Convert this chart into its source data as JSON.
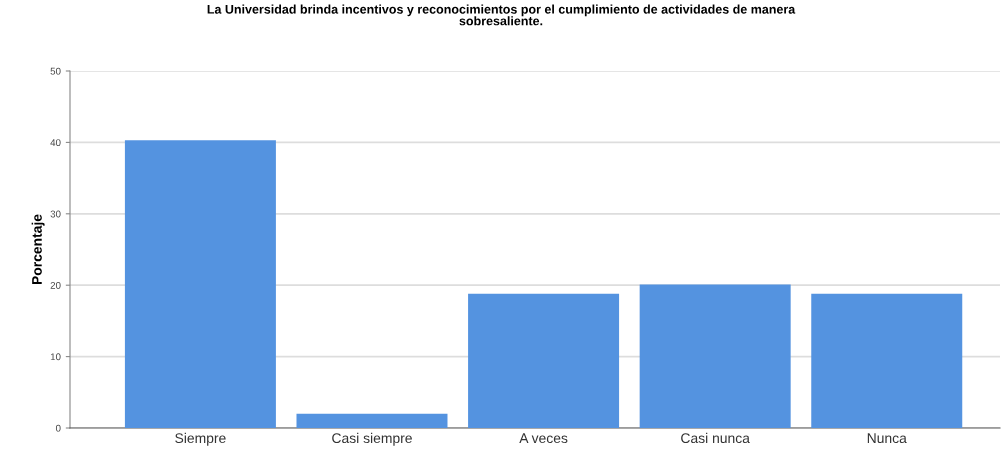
{
  "chart_data": {
    "type": "bar",
    "title": "La Universidad brinda incentivos y reconocimientos por el cumplimiento de actividades de manera\nsobresaliente.",
    "ylabel": "Porcentaje",
    "categories": [
      "Siempre",
      "Casi siempre",
      "A veces",
      "Casi nunca",
      "Nunca"
    ],
    "values": [
      40.3,
      2.0,
      18.8,
      20.1,
      18.8
    ],
    "color": "#5493e0",
    "ylim": [
      0,
      50
    ],
    "yticks": [
      0,
      10,
      20,
      30,
      40,
      50
    ],
    "grid": "y"
  }
}
